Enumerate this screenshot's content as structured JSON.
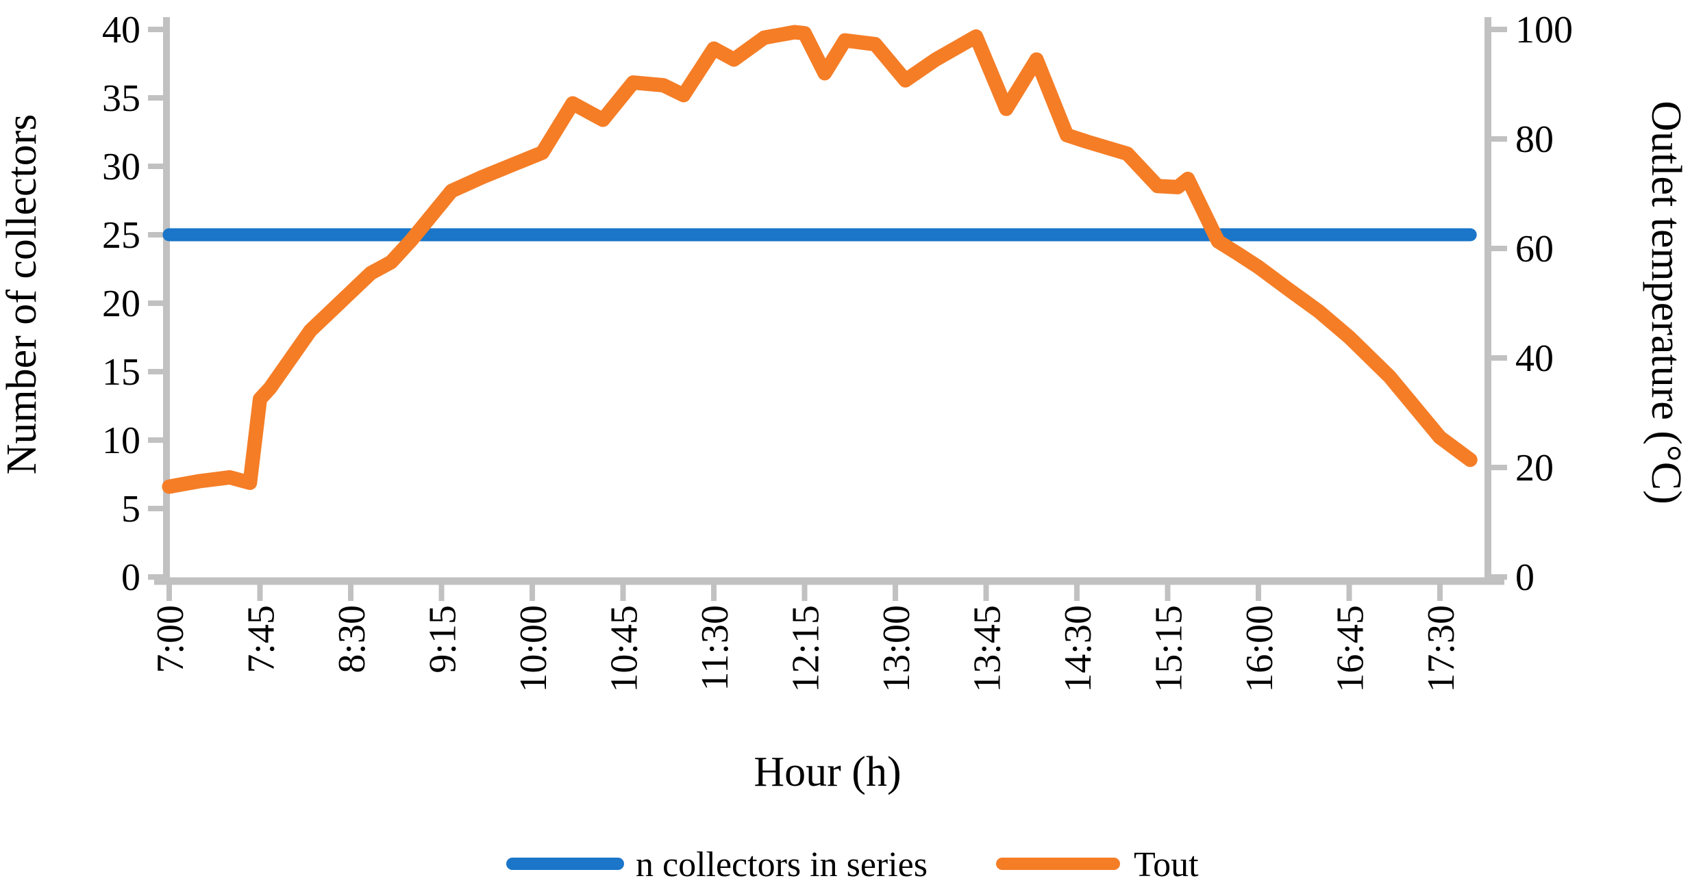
{
  "chart_data": {
    "type": "line",
    "title": "",
    "xlabel": "Hour (h)",
    "ylabel_left": "Number of collectors",
    "ylabel_right": "Outlet temperature (°C)",
    "grid": false,
    "legend_position": "bottom",
    "x_axis": {
      "tick_labels": [
        "7:00",
        "7:45",
        "8:30",
        "9:15",
        "10:00",
        "10:45",
        "11:30",
        "12:15",
        "13:00",
        "13:45",
        "14:30",
        "15:15",
        "16:00",
        "16:45",
        "17:30"
      ],
      "tick_minutes_from_start": [
        0,
        45,
        90,
        135,
        180,
        225,
        270,
        315,
        360,
        405,
        450,
        495,
        540,
        585,
        630
      ],
      "start_time": "7:00",
      "end_time": "17:45"
    },
    "left_axis": {
      "min": 0,
      "max": 40,
      "ticks": [
        0,
        5,
        10,
        15,
        20,
        25,
        30,
        35,
        40
      ]
    },
    "right_axis": {
      "min": 0,
      "max": 100,
      "ticks": [
        0,
        20,
        40,
        60,
        80,
        100
      ]
    },
    "axis_color": "#C1C1C1",
    "series": [
      {
        "name": "n collectors in series",
        "axis": "left",
        "color": "#1B75C8",
        "points": [
          [
            0,
            25
          ],
          [
            645,
            25
          ]
        ]
      },
      {
        "name": "Tout",
        "axis": "right",
        "color": "#F57D26",
        "points": [
          [
            0,
            16.5
          ],
          [
            15,
            17.5
          ],
          [
            30,
            18.2
          ],
          [
            40,
            17.2
          ],
          [
            45,
            32.5
          ],
          [
            50,
            34.5
          ],
          [
            70,
            45
          ],
          [
            80,
            48.5
          ],
          [
            100,
            55.5
          ],
          [
            110,
            57.5
          ],
          [
            120,
            61.5
          ],
          [
            140,
            70.5
          ],
          [
            155,
            73
          ],
          [
            165,
            74.5
          ],
          [
            175,
            76
          ],
          [
            185,
            77.5
          ],
          [
            200,
            86.5
          ],
          [
            215,
            83.5
          ],
          [
            230,
            90.3
          ],
          [
            245,
            89.8
          ],
          [
            255,
            88
          ],
          [
            270,
            96.5
          ],
          [
            280,
            94.5
          ],
          [
            295,
            98.5
          ],
          [
            310,
            99.5
          ],
          [
            315,
            99.3
          ],
          [
            325,
            92
          ],
          [
            335,
            98
          ],
          [
            350,
            97.3
          ],
          [
            365,
            90.7
          ],
          [
            380,
            94.5
          ],
          [
            400,
            98.7
          ],
          [
            415,
            85.5
          ],
          [
            430,
            94.5
          ],
          [
            445,
            80.7
          ],
          [
            455,
            79.5
          ],
          [
            475,
            77.3
          ],
          [
            490,
            71.4
          ],
          [
            500,
            71.2
          ],
          [
            505,
            72.7
          ],
          [
            520,
            61.3
          ],
          [
            530,
            59
          ],
          [
            540,
            56.6
          ],
          [
            555,
            52.5
          ],
          [
            570,
            48.5
          ],
          [
            585,
            43.8
          ],
          [
            605,
            36.6
          ],
          [
            630,
            25.5
          ],
          [
            645,
            21.4
          ]
        ]
      }
    ]
  },
  "legend": {
    "item1": "n collectors in series",
    "item2": "Tout"
  }
}
